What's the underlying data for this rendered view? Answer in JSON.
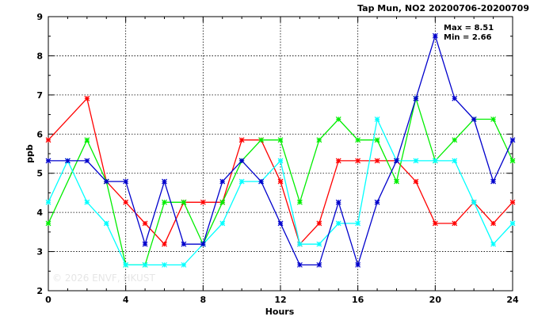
{
  "chart_data": {
    "type": "line",
    "title": "Tap Mun, NO2 20200706-20200709",
    "xlabel": "Hours",
    "ylabel": "ppb",
    "xlim": [
      0,
      24
    ],
    "ylim": [
      2,
      9
    ],
    "x_ticks": [
      0,
      4,
      8,
      12,
      16,
      20,
      24
    ],
    "y_ticks": [
      2,
      3,
      4,
      5,
      6,
      7,
      8,
      9
    ],
    "grid": true,
    "annotations": [
      "Max = 8.51",
      "Min = 2.66"
    ],
    "watermark": "© 2026  ENVF, HKUST",
    "x": [
      0,
      1,
      2,
      3,
      4,
      5,
      6,
      7,
      8,
      9,
      10,
      11,
      12,
      13,
      14,
      15,
      16,
      17,
      18,
      19,
      20,
      21,
      22,
      23,
      24
    ],
    "series": [
      {
        "color": "#ff0000",
        "values": [
          5.85,
          null,
          6.91,
          4.79,
          4.26,
          3.72,
          3.19,
          4.26,
          4.26,
          4.26,
          5.85,
          5.85,
          4.79,
          3.19,
          3.72,
          5.32,
          5.32,
          5.32,
          5.32,
          4.79,
          3.72,
          3.72,
          4.26,
          3.72,
          4.26
        ]
      },
      {
        "color": "#00ee00",
        "values": [
          3.72,
          null,
          5.85,
          4.79,
          2.66,
          2.66,
          4.26,
          4.26,
          3.19,
          4.26,
          5.32,
          5.85,
          5.85,
          4.26,
          5.85,
          6.38,
          5.85,
          5.85,
          4.79,
          6.91,
          5.32,
          5.85,
          6.38,
          6.38,
          5.32
        ]
      },
      {
        "color": "#00ffff",
        "values": [
          4.26,
          5.32,
          4.26,
          3.72,
          2.66,
          2.66,
          2.66,
          2.66,
          3.19,
          3.72,
          4.79,
          4.79,
          5.32,
          3.19,
          3.19,
          3.72,
          3.72,
          6.38,
          5.32,
          5.32,
          5.32,
          5.32,
          4.26,
          3.19,
          3.72
        ]
      },
      {
        "color": "#0000cc",
        "values": [
          5.32,
          5.32,
          5.32,
          4.79,
          4.79,
          3.19,
          4.79,
          3.19,
          3.19,
          4.79,
          5.32,
          4.79,
          3.72,
          2.66,
          2.66,
          4.26,
          2.66,
          4.26,
          5.32,
          6.91,
          8.51,
          6.91,
          6.38,
          4.79,
          5.85
        ]
      }
    ]
  }
}
